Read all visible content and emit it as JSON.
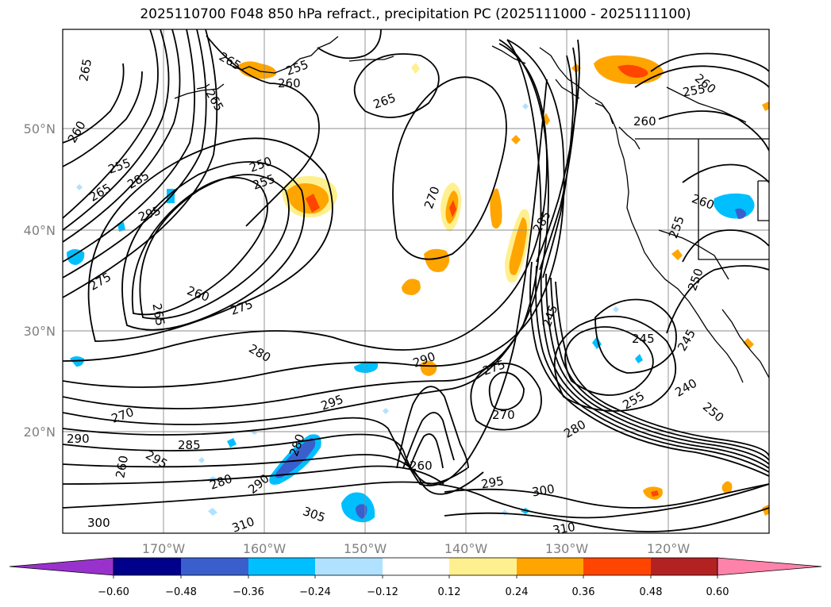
{
  "title": "2025110700 F048 850 hPa refract., precipitation PC (2025111000 - 2025111100)",
  "lat_labels": [
    "50°N",
    "40°N",
    "30°N",
    "20°N"
  ],
  "lon_labels": [
    "170°W",
    "160°W",
    "150°W",
    "140°W",
    "130°W",
    "120°W"
  ],
  "colorbar": {
    "ticks": [
      "−0.60",
      "−0.48",
      "−0.36",
      "−0.24",
      "−0.12",
      "0.12",
      "0.24",
      "0.36",
      "0.48",
      "0.60"
    ],
    "colors": [
      "#9932cc",
      "#00008b",
      "#3a5fcd",
      "#00bfff",
      "#b0e2ff",
      "#ffffff",
      "#fff08f",
      "#ffa500",
      "#ff4500",
      "#b22222",
      "#ff82ab"
    ]
  },
  "contour_labels": [
    "265",
    "265",
    "260",
    "255",
    "260",
    "265",
    "265",
    "260",
    "255",
    "260",
    "250",
    "255",
    "255",
    "265",
    "285",
    "295",
    "275",
    "260",
    "265",
    "275",
    "280",
    "290",
    "295",
    "270",
    "285",
    "245",
    "275",
    "270",
    "250",
    "255",
    "245",
    "240",
    "250",
    "255",
    "260",
    "245",
    "290",
    "285",
    "295",
    "280",
    "290",
    "300",
    "305",
    "310",
    "295",
    "300",
    "310",
    "260",
    "280",
    "270",
    "280",
    "260"
  ],
  "colors": {
    "grid": "#8c8c8c",
    "contour": "#000000"
  }
}
